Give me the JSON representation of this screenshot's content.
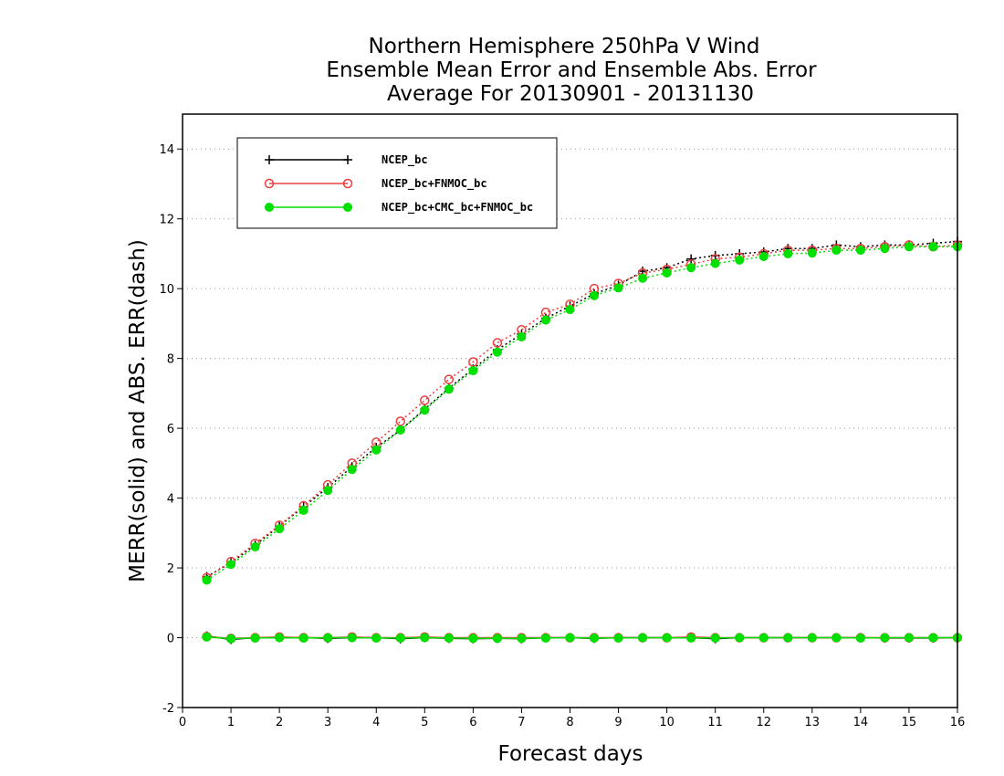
{
  "chart_data": {
    "type": "line",
    "title": [
      "Northern Hemisphere 250hPa V Wind",
      "Ensemble Mean Error and Ensemble Abs. Error",
      "Average For 20130901 - 20131130"
    ],
    "xlabel": "Forecast days",
    "ylabel": "MERR(solid) and ABS. ERR(dash)",
    "xlim": [
      0,
      16
    ],
    "ylim": [
      -2,
      15
    ],
    "xticks": [
      0,
      1,
      2,
      3,
      4,
      5,
      6,
      7,
      8,
      9,
      10,
      11,
      12,
      13,
      14,
      15,
      16
    ],
    "yticks": [
      -2,
      0,
      2,
      4,
      6,
      8,
      10,
      12,
      14
    ],
    "grid": "horizontal dotted",
    "legend_position": "top-left",
    "x": [
      0.5,
      1,
      1.5,
      2,
      2.5,
      3,
      3.5,
      4,
      4.5,
      5,
      5.5,
      6,
      6.5,
      7,
      7.5,
      8,
      8.5,
      9,
      9.5,
      10,
      10.5,
      11,
      11.5,
      12,
      12.5,
      13,
      13.5,
      14,
      14.5,
      15,
      15.5,
      16
    ],
    "series": [
      {
        "name": "NCEP_bc",
        "color": "#000000",
        "marker": "plus",
        "abs_error": [
          1.75,
          2.15,
          2.65,
          3.2,
          3.75,
          4.3,
          4.9,
          5.45,
          5.95,
          6.55,
          7.15,
          7.7,
          8.25,
          8.7,
          9.15,
          9.5,
          9.85,
          10.1,
          10.5,
          10.6,
          10.85,
          10.95,
          11.0,
          11.05,
          11.15,
          11.15,
          11.25,
          11.2,
          11.25,
          11.25,
          11.3,
          11.35
        ],
        "mean_error": [
          0.05,
          -0.05,
          0.0,
          0.0,
          0.0,
          -0.02,
          0.0,
          0.0,
          -0.03,
          0.0,
          -0.02,
          -0.03,
          -0.02,
          -0.03,
          0.0,
          0.0,
          -0.02,
          0.0,
          0.0,
          0.0,
          0.0,
          -0.03,
          0.0,
          0.0,
          0.0,
          0.0,
          0.0,
          0.0,
          -0.01,
          -0.01,
          -0.01,
          0.0
        ]
      },
      {
        "name": "NCEP_bc+FNMOC_bc",
        "color": "#e84040",
        "marker": "open-circle",
        "abs_error": [
          1.72,
          2.18,
          2.7,
          3.22,
          3.78,
          4.38,
          5.0,
          5.6,
          6.2,
          6.8,
          7.4,
          7.9,
          8.45,
          8.82,
          9.32,
          9.55,
          10.0,
          10.15,
          10.45,
          10.55,
          10.7,
          10.85,
          10.9,
          11.0,
          11.1,
          11.1,
          11.15,
          11.15,
          11.2,
          11.25,
          11.2,
          11.25
        ],
        "mean_error": [
          0.03,
          -0.02,
          0.0,
          0.02,
          0.0,
          0.0,
          0.02,
          0.0,
          0.0,
          0.02,
          0.0,
          0.0,
          0.0,
          0.0,
          0.0,
          0.0,
          0.0,
          0.0,
          0.0,
          0.0,
          0.02,
          0.0,
          0.0,
          0.0,
          0.0,
          0.0,
          0.0,
          0.0,
          0.0,
          0.0,
          0.0,
          0.0
        ]
      },
      {
        "name": "NCEP_bc+CMC_bc+FNMOC_bc",
        "color": "#00e000",
        "marker": "filled-circle",
        "abs_error": [
          1.65,
          2.1,
          2.6,
          3.12,
          3.65,
          4.22,
          4.82,
          5.38,
          5.95,
          6.52,
          7.12,
          7.65,
          8.18,
          8.62,
          9.1,
          9.4,
          9.8,
          10.02,
          10.3,
          10.45,
          10.6,
          10.72,
          10.82,
          10.92,
          11.0,
          11.02,
          11.1,
          11.1,
          11.15,
          11.2,
          11.2,
          11.2
        ],
        "mean_error": [
          0.02,
          -0.03,
          -0.01,
          0.0,
          -0.01,
          0.0,
          0.0,
          -0.01,
          -0.01,
          0.0,
          -0.01,
          -0.02,
          -0.02,
          -0.02,
          -0.01,
          0.0,
          -0.01,
          -0.01,
          0.0,
          0.0,
          -0.01,
          -0.01,
          0.0,
          0.0,
          0.0,
          0.0,
          0.0,
          -0.01,
          0.0,
          0.0,
          0.0,
          0.0
        ]
      }
    ]
  }
}
